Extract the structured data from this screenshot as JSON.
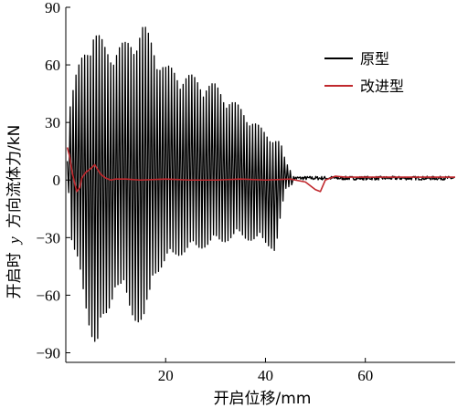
{
  "chart_data": {
    "type": "line",
    "xlabel": "开启位移/mm",
    "ylabel_parts": [
      "开启时",
      "y",
      "方向流体力/kN"
    ],
    "xlim": [
      0,
      78
    ],
    "ylim": [
      -95,
      90
    ],
    "x_ticks": [
      20,
      40,
      60
    ],
    "y_ticks": [
      90,
      60,
      30,
      0,
      -30,
      -60,
      -90
    ],
    "x_tick_labels": [
      "20",
      "40",
      "60"
    ],
    "y_tick_labels": [
      "90",
      "60",
      "30",
      "0",
      "−30",
      "−60",
      "−90"
    ],
    "legend_position": "top-right",
    "series": [
      {
        "name": "原型",
        "color": "#000000",
        "oscillation": {
          "x_start": 0.3,
          "x_end": 45.5,
          "cycle_mm": 0.58,
          "upper_envelope": [
            [
              0.3,
              12
            ],
            [
              0.8,
              42
            ],
            [
              2,
              55
            ],
            [
              4.5,
              75
            ],
            [
              5.5,
              81
            ],
            [
              8,
              70
            ],
            [
              12,
              72
            ],
            [
              15.5,
              82
            ],
            [
              20,
              60
            ],
            [
              25,
              55
            ],
            [
              30,
              50
            ],
            [
              35,
              38
            ],
            [
              40,
              25
            ],
            [
              43,
              20
            ],
            [
              44,
              10
            ],
            [
              45.5,
              3
            ]
          ],
          "lower_envelope": [
            [
              0.3,
              10
            ],
            [
              1,
              -30
            ],
            [
              3,
              -55
            ],
            [
              5,
              -80
            ],
            [
              6.3,
              -92
            ],
            [
              10,
              -55
            ],
            [
              13,
              -70
            ],
            [
              16,
              -80
            ],
            [
              17.5,
              -50
            ],
            [
              22,
              -40
            ],
            [
              28,
              -35
            ],
            [
              35,
              -30
            ],
            [
              41,
              -35
            ],
            [
              42,
              -38
            ],
            [
              44,
              -5
            ],
            [
              45.5,
              -2
            ]
          ]
        },
        "tail": {
          "x_start": 45.5,
          "x_end": 78,
          "value": 1,
          "noise": 1.0
        }
      },
      {
        "name": "改进型",
        "color": "#c0282d",
        "x": [
          0.3,
          0.8,
          1.2,
          1.8,
          2.2,
          2.8,
          3.2,
          4,
          5,
          5.8,
          6.5,
          7,
          8,
          9,
          10,
          12,
          15,
          20,
          25,
          30,
          35,
          40,
          45,
          48,
          50,
          51,
          52,
          54,
          56,
          60,
          65,
          70,
          78
        ],
        "y": [
          17,
          12,
          5,
          -2,
          -6,
          -4,
          1,
          4,
          6,
          8,
          5,
          3,
          1,
          0,
          0.5,
          0.5,
          0,
          0.5,
          0,
          0,
          0.5,
          0,
          0.5,
          -1,
          -5,
          -6,
          0,
          2,
          1.5,
          1.5,
          1.5,
          1.5,
          1.5
        ]
      }
    ]
  }
}
